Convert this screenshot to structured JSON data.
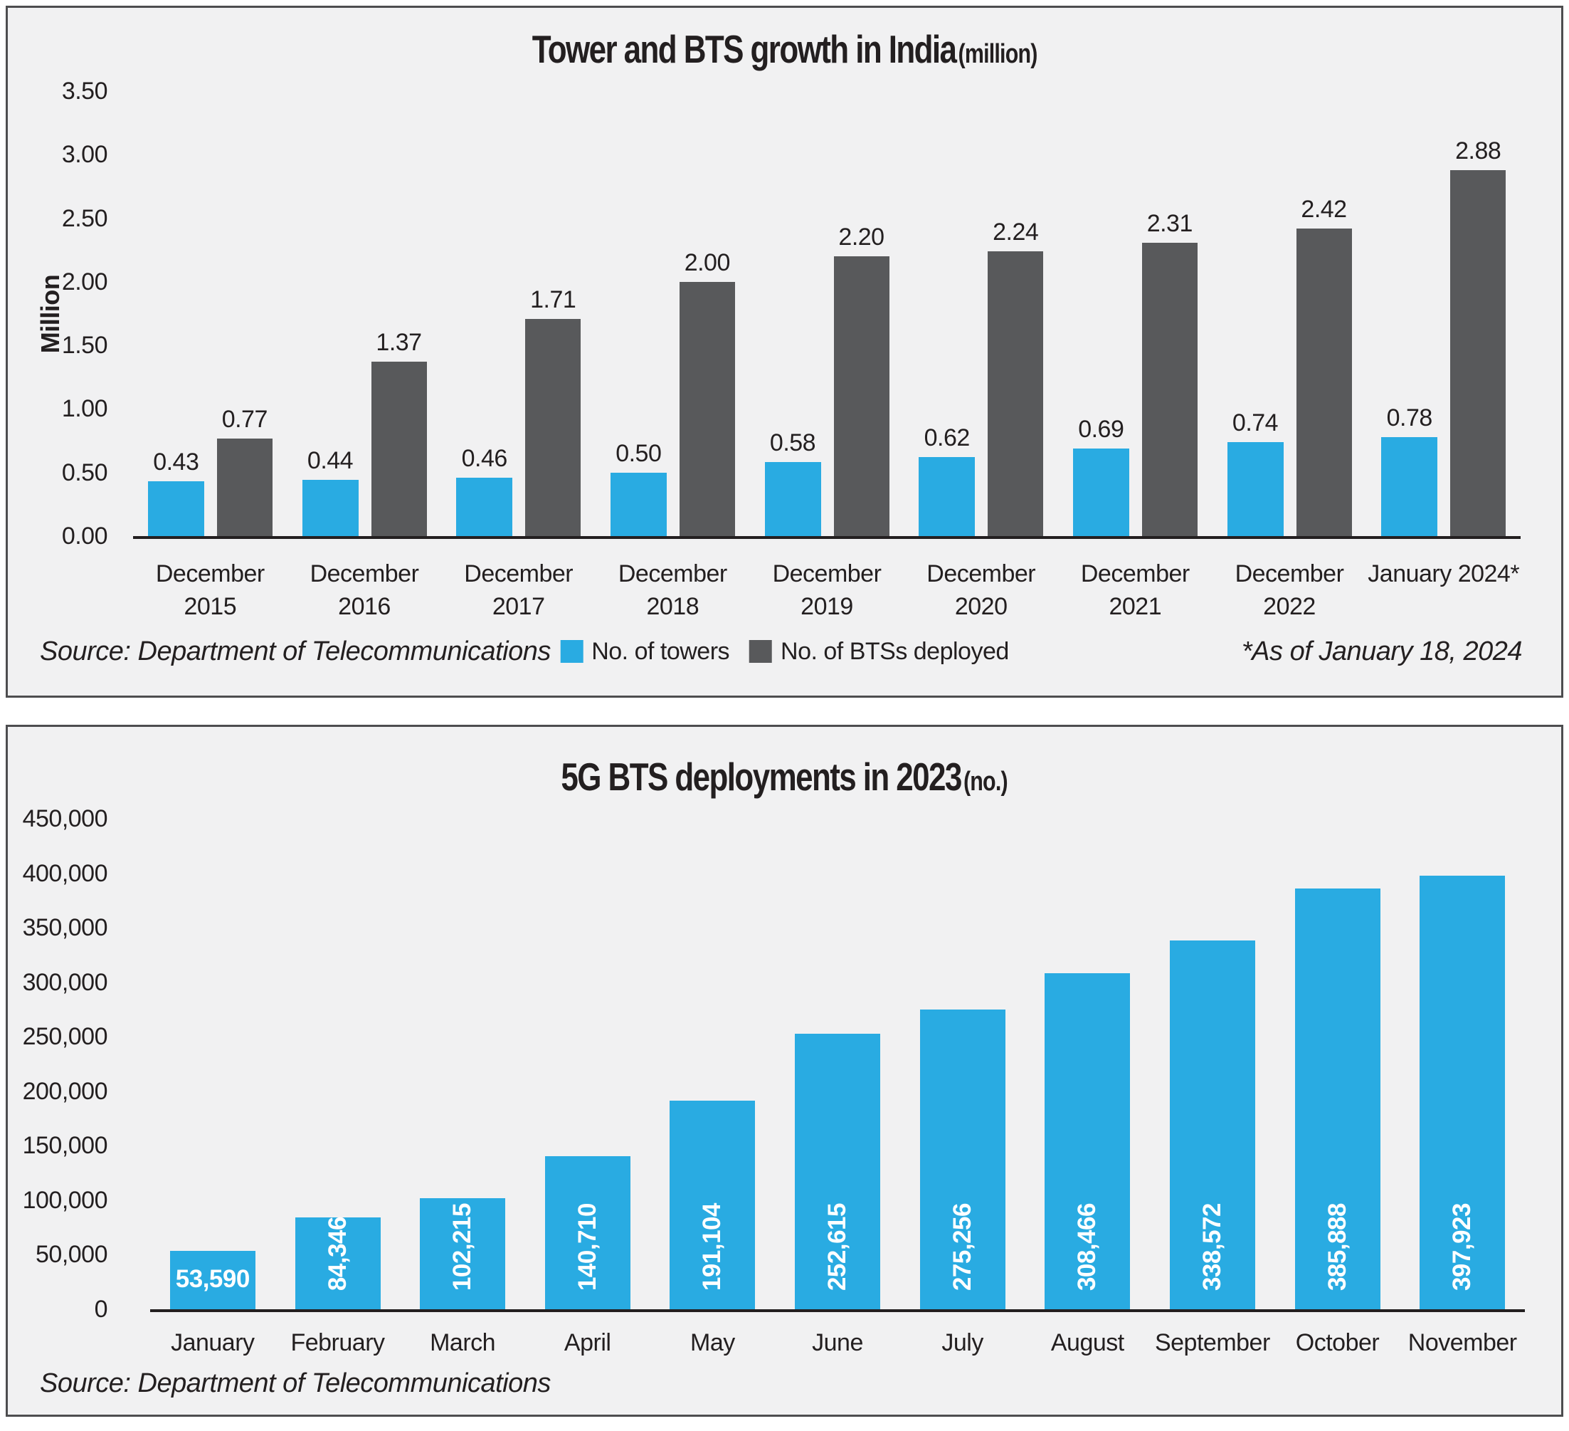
{
  "colors": {
    "towers_blue": "#29abe2",
    "bts_gray": "#58595b",
    "panel_bg": "#f1f1f2",
    "panel_border": "#4d4d4f",
    "text": "#231f20"
  },
  "chart_data": [
    {
      "type": "bar",
      "title": "Tower and BTS growth in India",
      "title_unit": "(million)",
      "ylabel": "Million",
      "ylim": [
        0,
        3.5
      ],
      "ytick_step": 0.5,
      "ytick_labels": [
        "0.00",
        "0.50",
        "1.00",
        "1.50",
        "2.00",
        "2.50",
        "3.00",
        "3.50"
      ],
      "grid": false,
      "legend_position": "bottom-center",
      "categories": [
        [
          "December",
          "2015"
        ],
        [
          "December",
          "2016"
        ],
        [
          "December",
          "2017"
        ],
        [
          "December",
          "2018"
        ],
        [
          "December",
          "2019"
        ],
        [
          "December",
          "2020"
        ],
        [
          "December",
          "2021"
        ],
        [
          "December",
          "2022"
        ],
        [
          "January 2024*"
        ]
      ],
      "series": [
        {
          "name": "No. of towers",
          "color": "#29abe2",
          "values": [
            0.43,
            0.44,
            0.46,
            0.5,
            0.58,
            0.62,
            0.69,
            0.74,
            0.78
          ],
          "labels": [
            "0.43",
            "0.44",
            "0.46",
            "0.50",
            "0.58",
            "0.62",
            "0.69",
            "0.74",
            "0.78"
          ]
        },
        {
          "name": "No. of BTSs deployed",
          "color": "#58595b",
          "values": [
            0.77,
            1.37,
            1.71,
            2.0,
            2.2,
            2.24,
            2.31,
            2.42,
            2.88
          ],
          "labels": [
            "0.77",
            "1.37",
            "1.71",
            "2.00",
            "2.20",
            "2.24",
            "2.31",
            "2.42",
            "2.88"
          ]
        }
      ],
      "source": "Source: Department of Telecommunications",
      "footnote": "*As of January 18, 2024"
    },
    {
      "type": "bar",
      "title": "5G BTS deployments in 2023",
      "title_unit": "(no.)",
      "ylim": [
        0,
        450000
      ],
      "ytick_step": 50000,
      "ytick_labels": [
        "0",
        "50,000",
        "100,000",
        "150,000",
        "200,000",
        "250,000",
        "300,000",
        "350,000",
        "400,000",
        "450,000"
      ],
      "grid": false,
      "categories": [
        "January",
        "February",
        "March",
        "April",
        "May",
        "June",
        "July",
        "August",
        "September",
        "October",
        "November"
      ],
      "series": [
        {
          "color": "#29abe2",
          "values": [
            53590,
            84346,
            102215,
            140710,
            191104,
            252615,
            275256,
            308466,
            338572,
            385888,
            397923
          ],
          "labels": [
            "53,590",
            "84,346",
            "102,215",
            "140,710",
            "191,104",
            "252,615",
            "275,256",
            "308,466",
            "338,572",
            "385,888",
            "397,923"
          ],
          "label_inside": true,
          "label_color": "#ffffff"
        }
      ],
      "value_label_orientation": [
        "h",
        "v",
        "v",
        "v",
        "v",
        "v",
        "v",
        "v",
        "v",
        "v",
        "v"
      ],
      "source": "Source: Department of Telecommunications"
    }
  ]
}
